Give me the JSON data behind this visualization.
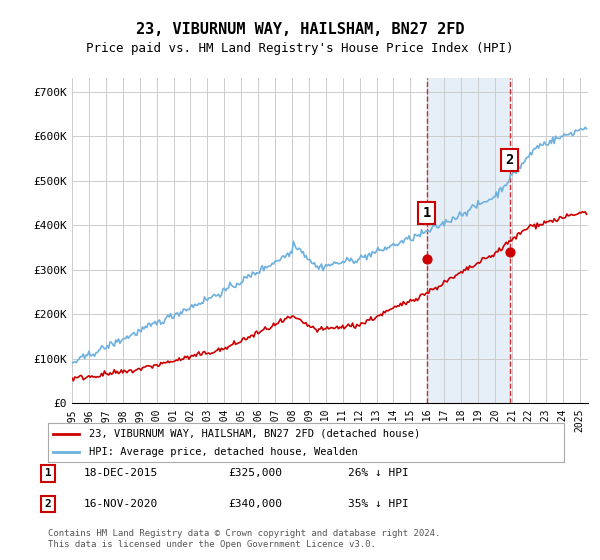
{
  "title": "23, VIBURNUM WAY, HAILSHAM, BN27 2FD",
  "subtitle": "Price paid vs. HM Land Registry's House Price Index (HPI)",
  "ylabel_ticks": [
    "£0",
    "£100K",
    "£200K",
    "£300K",
    "£400K",
    "£500K",
    "£600K",
    "£700K"
  ],
  "ytick_values": [
    0,
    100000,
    200000,
    300000,
    400000,
    500000,
    600000,
    700000
  ],
  "ylim": [
    0,
    730000
  ],
  "xlim_start": 1995.0,
  "xlim_end": 2025.5,
  "sale1_date": 2015.96,
  "sale1_price": 325000,
  "sale1_label": "1",
  "sale2_date": 2020.88,
  "sale2_price": 340000,
  "sale2_label": "2",
  "legend_property": "23, VIBURNUM WAY, HAILSHAM, BN27 2FD (detached house)",
  "legend_hpi": "HPI: Average price, detached house, Wealden",
  "note1_num": "1",
  "note1_date": "18-DEC-2015",
  "note1_price": "£325,000",
  "note1_hpi": "26% ↓ HPI",
  "note2_num": "2",
  "note2_date": "16-NOV-2020",
  "note2_price": "£340,000",
  "note2_hpi": "35% ↓ HPI",
  "copyright": "Contains HM Land Registry data © Crown copyright and database right 2024.\nThis data is licensed under the Open Government Licence v3.0.",
  "hpi_color": "#6eb0de",
  "property_color": "#cc0000",
  "shade_color": "#dce9f5",
  "grid_color": "#cccccc",
  "bg_color": "#ffffff"
}
